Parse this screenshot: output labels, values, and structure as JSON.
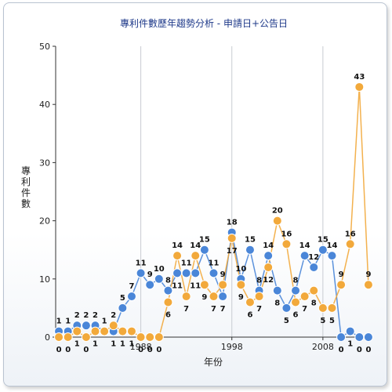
{
  "chart_data": {
    "type": "line",
    "title": "專利件數歷年趨勢分析 - 申請日+公告日",
    "xlabel": "年份",
    "ylabel": "專利件數",
    "ylim": [
      0,
      50
    ],
    "yticks": [
      0,
      10,
      20,
      30,
      40,
      50
    ],
    "xticks": [
      1988,
      1998,
      2008
    ],
    "x": [
      1979,
      1980,
      1981,
      1982,
      1983,
      1984,
      1985,
      1986,
      1987,
      1988,
      1989,
      1990,
      1991,
      1992,
      1993,
      1994,
      1995,
      1996,
      1997,
      1998,
      1999,
      2000,
      2001,
      2002,
      2003,
      2004,
      2005,
      2006,
      2007,
      2008,
      2009,
      2010,
      2011,
      2012,
      2013
    ],
    "grid": "vertical",
    "series": [
      {
        "color": "#4a86d8",
        "values": [
          1,
          1,
          2,
          2,
          2,
          1,
          1,
          5,
          7,
          11,
          9,
          10,
          8,
          11,
          11,
          11,
          15,
          11,
          7,
          18,
          10,
          15,
          8,
          14,
          8,
          5,
          8,
          14,
          12,
          15,
          14,
          0,
          1,
          0,
          0
        ]
      },
      {
        "color": "#f2a93b",
        "values": [
          0,
          0,
          1,
          0,
          1,
          1,
          2,
          1,
          1,
          0,
          0,
          0,
          6,
          14,
          7,
          14,
          9,
          7,
          9,
          17,
          9,
          6,
          7,
          12,
          20,
          16,
          6,
          7,
          8,
          5,
          5,
          9,
          16,
          43,
          9
        ]
      }
    ]
  }
}
